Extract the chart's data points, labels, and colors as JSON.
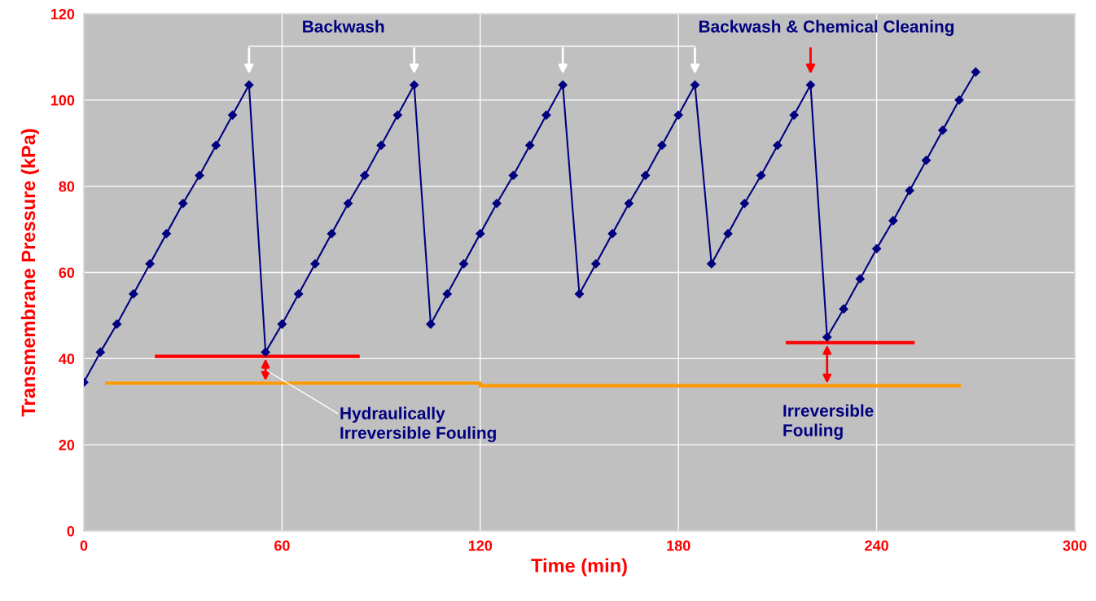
{
  "chart_data": {
    "type": "line",
    "xlabel": "Time (min)",
    "ylabel": "Transmembrane Pressure (kPa)",
    "xlim": [
      0,
      300
    ],
    "xticks": [
      0,
      60,
      120,
      180,
      240,
      300
    ],
    "ylim": [
      0,
      120
    ],
    "yticks": [
      0,
      20,
      40,
      60,
      80,
      100,
      120
    ],
    "grid": true,
    "legend": false,
    "marker": "diamond",
    "line_style": "solid",
    "x": [
      0,
      5,
      10,
      15,
      20,
      25,
      30,
      35,
      40,
      45,
      50,
      55,
      60,
      65,
      70,
      75,
      80,
      85,
      90,
      95,
      100,
      105,
      110,
      115,
      120,
      125,
      130,
      135,
      140,
      145,
      150,
      155,
      160,
      165,
      170,
      175,
      180,
      185,
      190,
      195,
      200,
      205,
      210,
      215,
      220,
      225,
      230,
      235,
      240,
      245,
      250,
      255,
      260,
      265,
      270
    ],
    "series": [
      {
        "color": "#000080",
        "values": [
          34.5,
          41.5,
          48,
          55,
          62,
          69,
          76,
          82.5,
          89.5,
          96.5,
          103.5,
          41.5,
          48,
          55,
          62,
          69,
          76,
          82.5,
          89.5,
          96.5,
          103.5,
          48,
          55,
          62,
          69,
          76,
          82.5,
          89.5,
          96.5,
          103.5,
          55,
          62,
          69,
          76,
          82.5,
          89.5,
          96.5,
          103.5,
          62,
          69,
          76,
          82.5,
          89.5,
          96.5,
          103.5,
          45,
          51.5,
          58.5,
          65.5,
          72,
          79,
          86,
          93,
          100,
          106.5
        ]
      },
      {
        "color": "#ff0000",
        "marker": "none",
        "x": [
          22,
          83
        ],
        "values": [
          40.5,
          40.5
        ]
      },
      {
        "color": "#ff0000",
        "marker": "none",
        "x": [
          213,
          251
        ],
        "values": [
          43.7,
          43.7
        ]
      },
      {
        "color": "#ff9900",
        "marker": "none",
        "x": [
          7,
          120
        ],
        "values": [
          34.3,
          34.3
        ]
      },
      {
        "color": "#ff9900",
        "marker": "none",
        "x": [
          120,
          265
        ],
        "values": [
          33.7,
          33.7
        ]
      }
    ],
    "annotations": [
      "Backwash",
      "Backwash & Chemical Cleaning",
      "Hydraulically\nIrreversible Fouling",
      "Irreversible\nFouling"
    ]
  }
}
